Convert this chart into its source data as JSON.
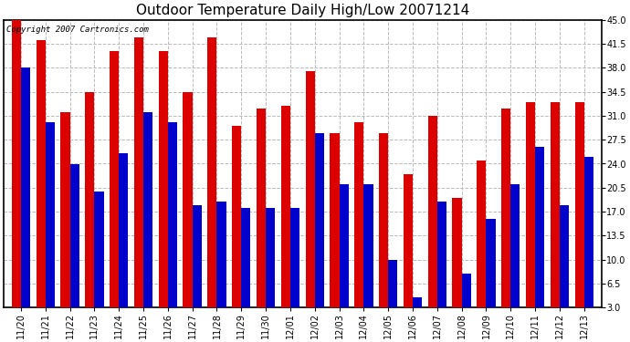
{
  "title": "Outdoor Temperature Daily High/Low 20071214",
  "copyright_text": "Copyright 2007 Cartronics.com",
  "dates": [
    "11/20",
    "11/21",
    "11/22",
    "11/23",
    "11/24",
    "11/25",
    "11/26",
    "11/27",
    "11/28",
    "11/29",
    "11/30",
    "12/01",
    "12/02",
    "12/03",
    "12/04",
    "12/05",
    "12/06",
    "12/07",
    "12/08",
    "12/09",
    "12/10",
    "12/11",
    "12/12",
    "12/13"
  ],
  "highs": [
    45.0,
    42.0,
    31.5,
    34.5,
    40.5,
    42.5,
    40.5,
    34.5,
    42.5,
    29.5,
    32.0,
    32.5,
    37.5,
    28.5,
    30.0,
    28.5,
    22.5,
    31.0,
    19.0,
    24.5,
    32.0,
    33.0,
    33.0,
    33.0
  ],
  "lows": [
    38.0,
    30.0,
    24.0,
    20.0,
    25.5,
    31.5,
    30.0,
    18.0,
    18.5,
    17.5,
    17.5,
    17.5,
    28.5,
    21.0,
    21.0,
    10.0,
    4.5,
    18.5,
    8.0,
    16.0,
    21.0,
    26.5,
    18.0,
    25.0
  ],
  "high_color": "#dd0000",
  "low_color": "#0000cc",
  "bg_color": "#ffffff",
  "plot_bg": "#ffffff",
  "grid_color": "#bbbbbb",
  "yticks": [
    3.0,
    6.5,
    10.0,
    13.5,
    17.0,
    20.5,
    24.0,
    27.5,
    31.0,
    34.5,
    38.0,
    41.5,
    45.0
  ],
  "ylim": [
    3.0,
    45.0
  ],
  "ybase": 3.0,
  "bar_width": 0.38,
  "title_fontsize": 11,
  "tick_fontsize": 7,
  "copyright_fontsize": 6.5
}
